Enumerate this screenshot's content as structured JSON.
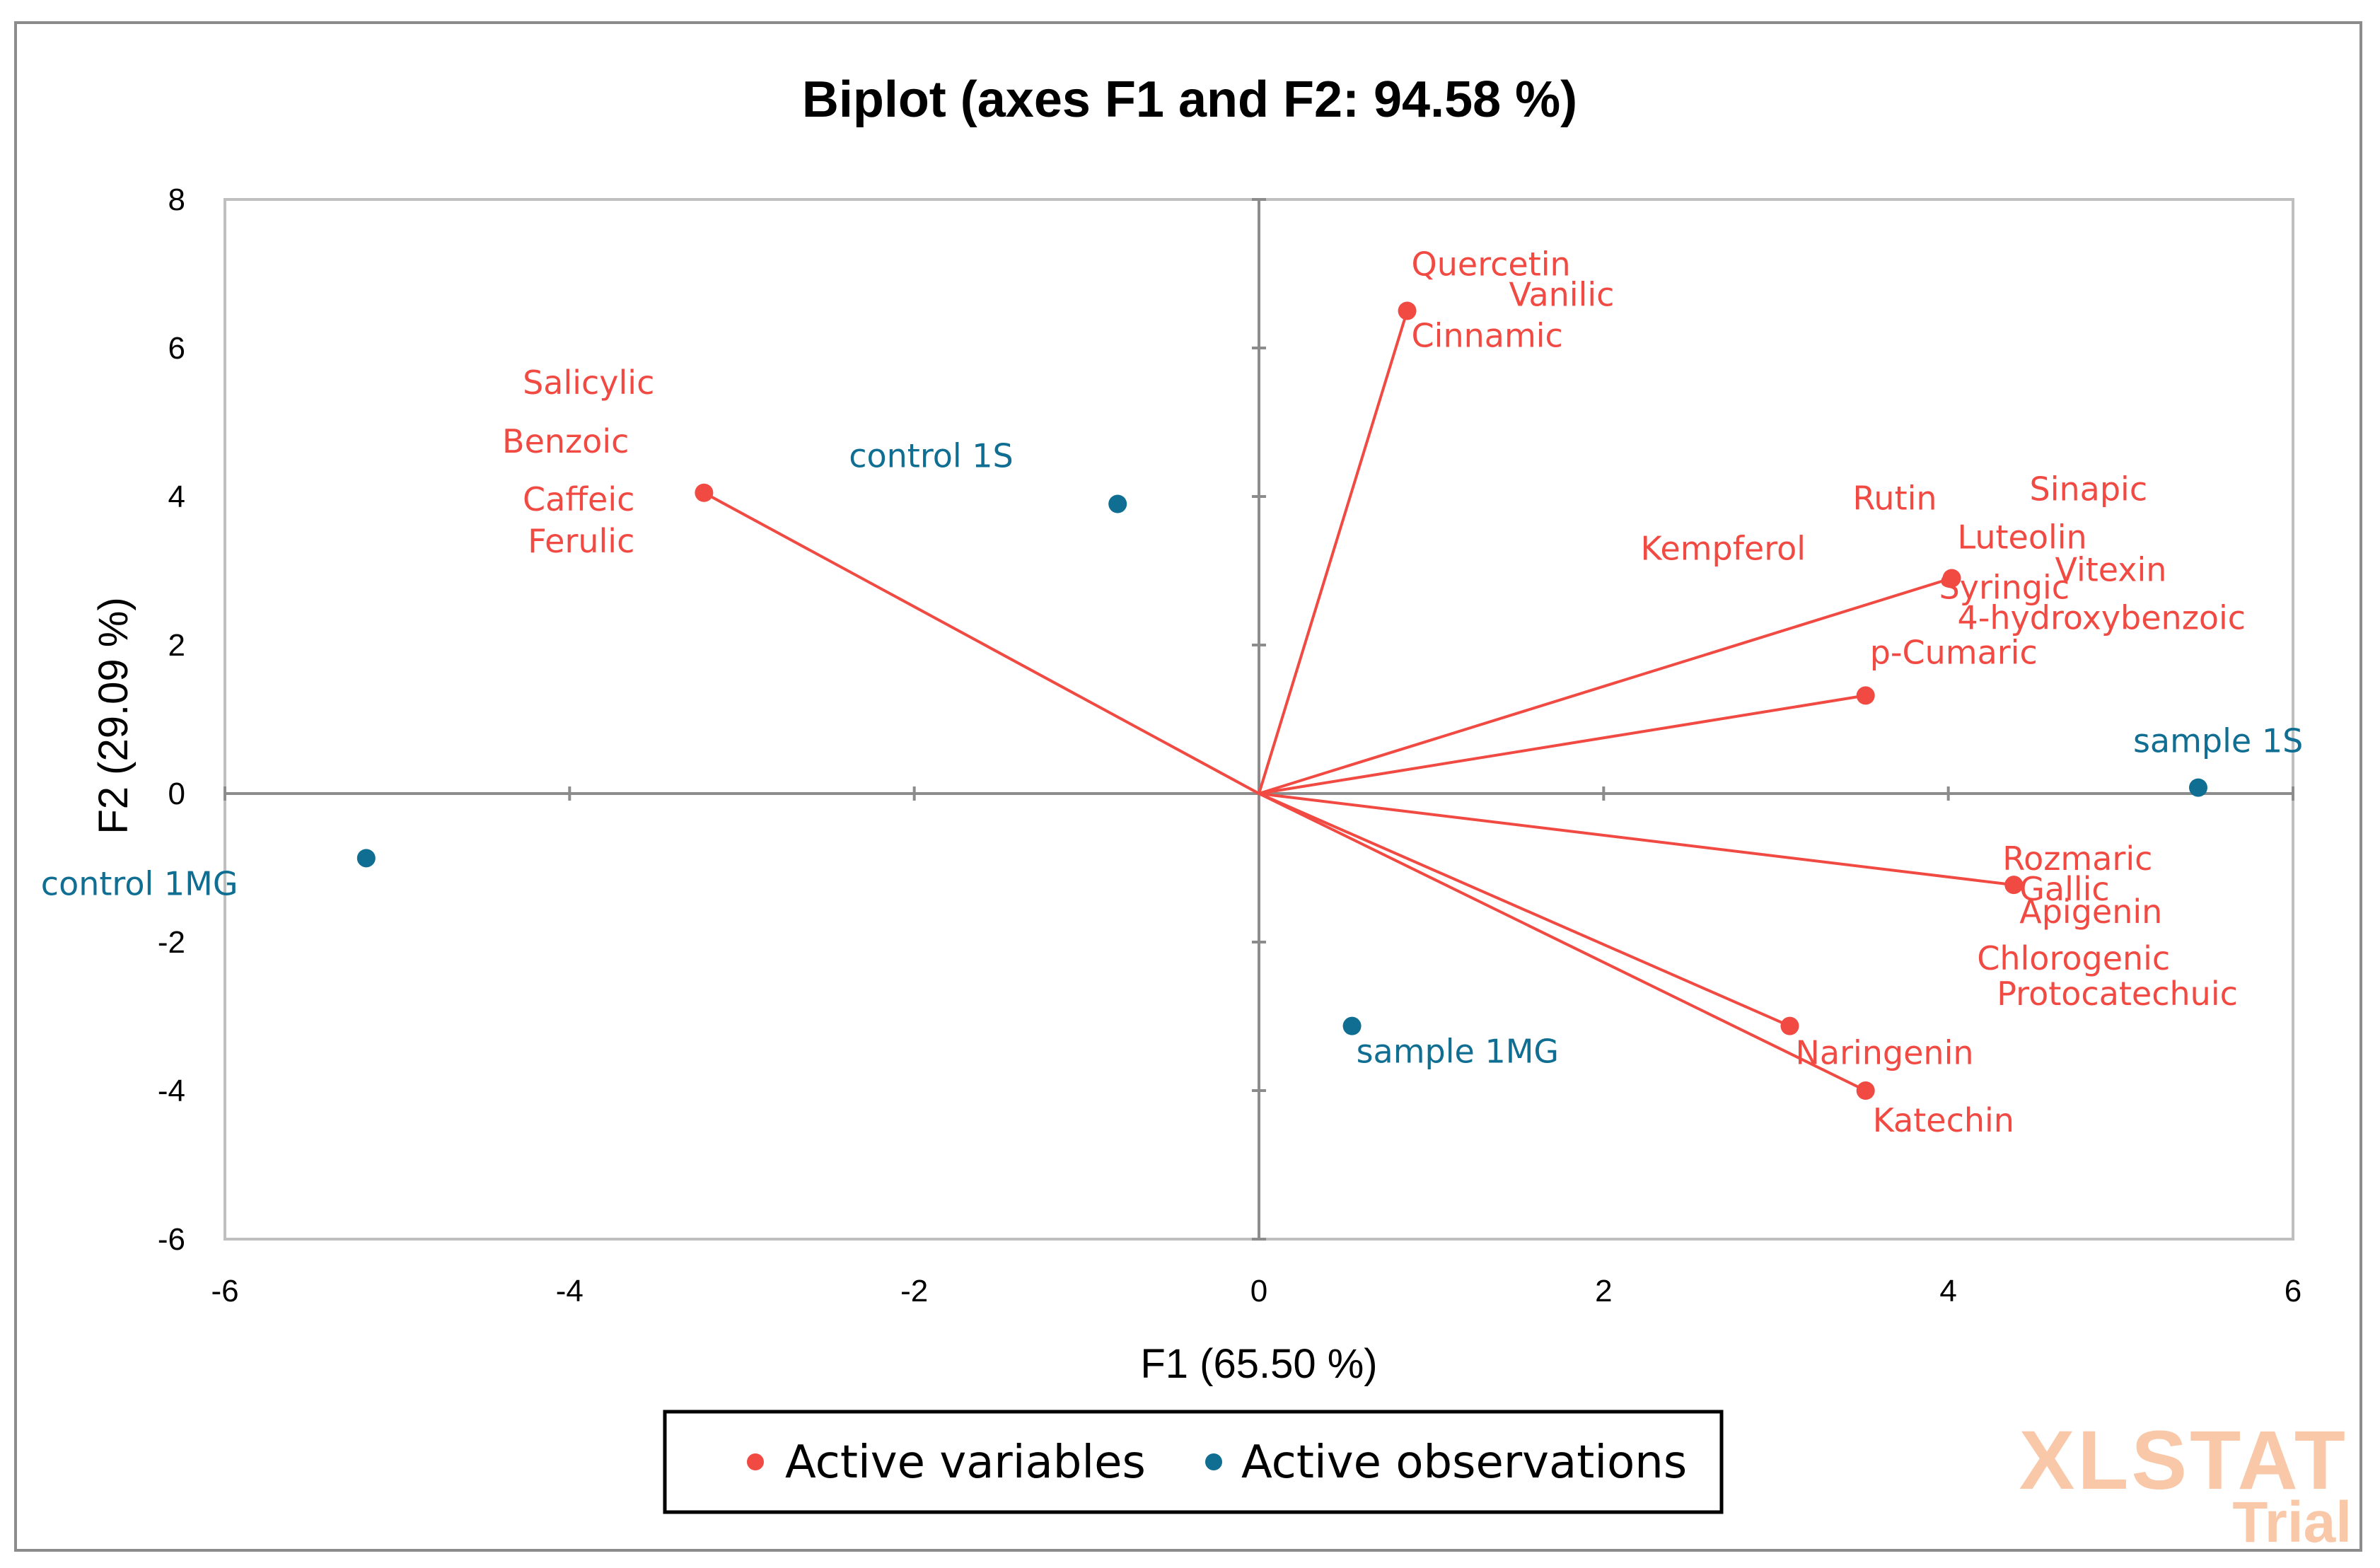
{
  "chart_data": {
    "type": "scatter",
    "title": "Biplot (axes F1 and F2: 94.58 %)",
    "xlabel": "F1 (65.50 %)",
    "ylabel": "F2 (29.09 %)",
    "xlim": [
      -6,
      6
    ],
    "ylim": [
      -6,
      8
    ],
    "x_ticks": [
      "-6",
      "-4",
      "-2",
      "0",
      "2",
      "4",
      "6"
    ],
    "y_ticks": [
      "8",
      "6",
      "4",
      "2",
      "0",
      "-2",
      "-4",
      "-6"
    ],
    "colors": {
      "variables": "#f04a43",
      "observations": "#0f6e92",
      "axis": "#8c8c8c"
    },
    "variables": [
      {
        "x": -3.22,
        "y": 4.05,
        "labels": [
          "Salicylic",
          "Benzoic",
          "Caffeic",
          "Ferulic"
        ]
      },
      {
        "x": 0.86,
        "y": 6.5,
        "labels": [
          "Quercetin",
          "Vanilic",
          "Cinnamic"
        ]
      },
      {
        "x": 4.02,
        "y": 2.9,
        "labels": [
          "Rutin",
          "Sinapic",
          "Luteolin",
          "Kempferol",
          "Vitexin",
          "Syringic",
          "4-hydroxybenzoic"
        ]
      },
      {
        "x": 3.52,
        "y": 1.32,
        "labels": [
          "p-Cumaric"
        ]
      },
      {
        "x": 4.38,
        "y": -1.23,
        "labels": [
          "Rozmaric",
          "Gallic",
          "Apigenin",
          "Chlorogenic",
          "Protocatechuic"
        ]
      },
      {
        "x": 3.08,
        "y": -3.13,
        "labels": [
          "Naringenin"
        ]
      },
      {
        "x": 3.52,
        "y": -4.0,
        "labels": [
          "Katechin"
        ]
      }
    ],
    "observations": [
      {
        "name": "control 1S",
        "x": -0.82,
        "y": 3.9
      },
      {
        "name": "control 1MG",
        "x": -5.18,
        "y": -0.87
      },
      {
        "name": "sample 1S",
        "x": 5.45,
        "y": 0.08
      },
      {
        "name": "sample 1MG",
        "x": 0.54,
        "y": -3.13
      }
    ],
    "legend": {
      "placement": "bottom",
      "items": [
        "Active variables",
        "Active observations"
      ]
    }
  },
  "watermark": {
    "line1": "XLSTAT",
    "line2": "Trial"
  }
}
